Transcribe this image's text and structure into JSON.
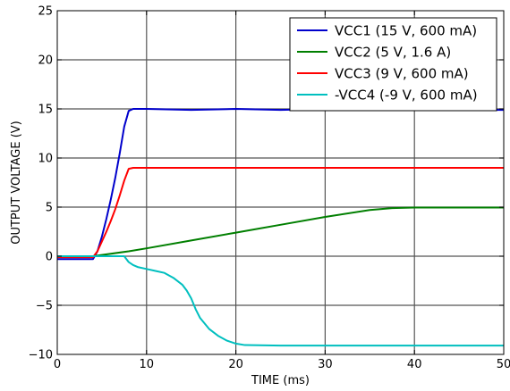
{
  "chart_data": {
    "type": "line",
    "xlabel": "TIME (ms)",
    "ylabel": "OUTPUT VOLTAGE (V)",
    "xlim": [
      0,
      50
    ],
    "ylim": [
      -10,
      25
    ],
    "xticks": [
      0,
      10,
      20,
      30,
      40,
      50
    ],
    "yticks": [
      -10,
      -5,
      0,
      5,
      10,
      15,
      20,
      25
    ],
    "xtick_labels": [
      "0",
      "10",
      "20",
      "30",
      "40",
      "50"
    ],
    "ytick_labels": [
      "−10",
      "−5",
      "0",
      "5",
      "10",
      "15",
      "20",
      "25"
    ],
    "grid": true,
    "legend_position": "top-right",
    "series": [
      {
        "name": "VCC1 (15 V, 600 mA)",
        "color": "#0000cc",
        "x": [
          0,
          4,
          4.5,
          5,
          5.5,
          6,
          6.5,
          7,
          7.5,
          8,
          8.5,
          10,
          15,
          20,
          25,
          30,
          35,
          40,
          45,
          50
        ],
        "y": [
          -0.3,
          -0.3,
          0.5,
          2,
          3.8,
          5.8,
          8,
          10.5,
          13.2,
          14.8,
          15,
          15,
          14.9,
          15,
          14.9,
          15,
          14.9,
          14.9,
          14.9,
          14.9
        ]
      },
      {
        "name": "VCC2 (5 V, 1.6 A)",
        "color": "#007f00",
        "x": [
          0,
          4,
          8,
          10,
          15,
          20,
          25,
          30,
          35,
          37.5,
          40,
          45,
          50
        ],
        "y": [
          0,
          0,
          0.5,
          0.8,
          1.6,
          2.4,
          3.2,
          4.0,
          4.7,
          4.9,
          4.95,
          4.95,
          4.95
        ]
      },
      {
        "name": "VCC3 (9 V, 600 mA)",
        "color": "#ff0000",
        "x": [
          0,
          4,
          4.5,
          5,
          5.5,
          6,
          6.5,
          7,
          7.5,
          8,
          8.5,
          10,
          20,
          30,
          40,
          50
        ],
        "y": [
          -0.1,
          -0.1,
          0.5,
          1.5,
          2.5,
          3.6,
          4.8,
          6.2,
          7.7,
          8.9,
          9,
          9,
          9,
          9,
          9,
          9
        ]
      },
      {
        "name": "-VCC4 (-9 V, 600 mA)",
        "color": "#00bfbf",
        "x": [
          0,
          7.5,
          8,
          8.5,
          9,
          10,
          11,
          12,
          13,
          14,
          14.5,
          15,
          15.5,
          16,
          17,
          18,
          19,
          20,
          21,
          25,
          30,
          40,
          50
        ],
        "y": [
          0,
          0,
          -0.6,
          -0.9,
          -1.1,
          -1.3,
          -1.5,
          -1.7,
          -2.2,
          -2.9,
          -3.5,
          -4.3,
          -5.4,
          -6.3,
          -7.4,
          -8.1,
          -8.6,
          -8.9,
          -9.05,
          -9.1,
          -9.1,
          -9.1,
          -9.1
        ]
      }
    ]
  }
}
